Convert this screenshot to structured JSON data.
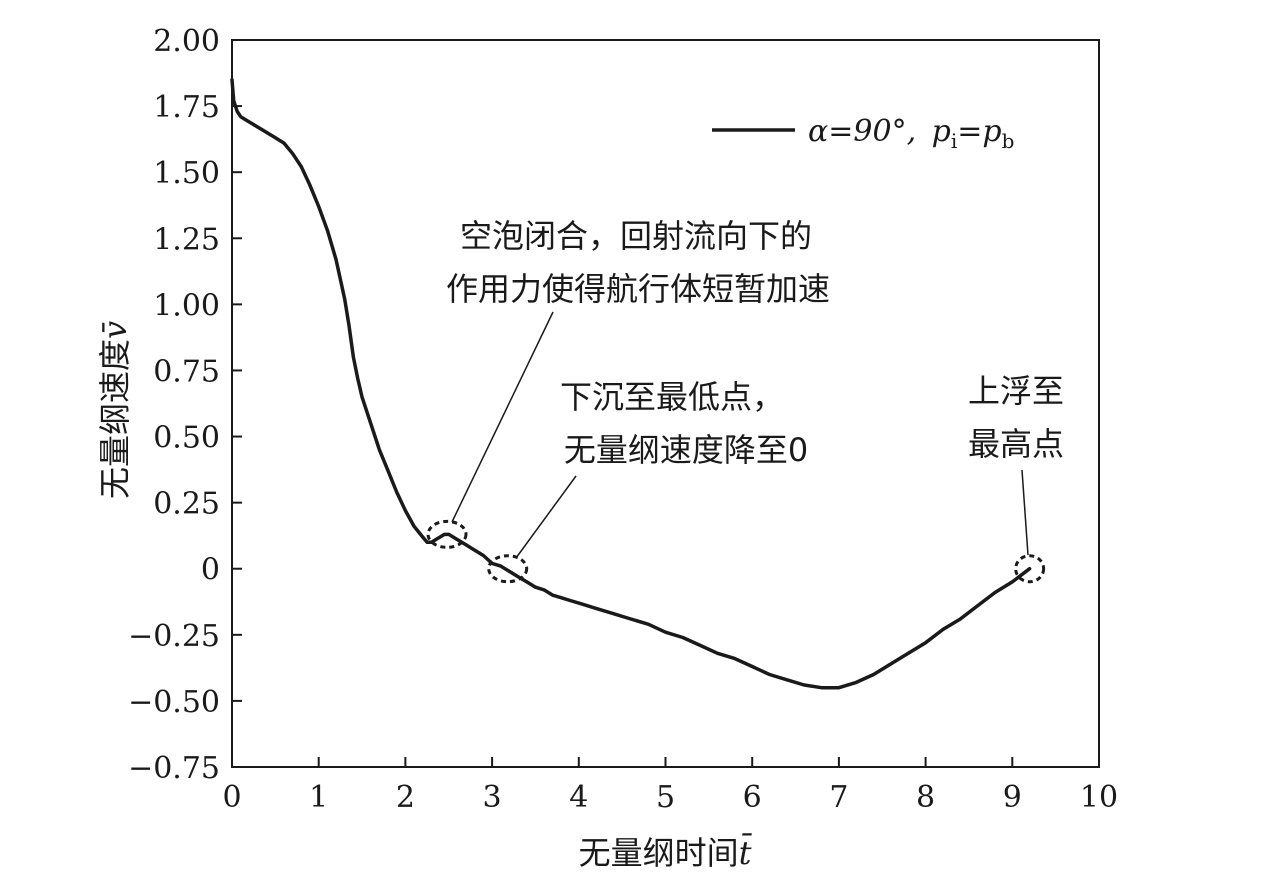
{
  "chart_data": {
    "type": "line",
    "xlabel": "无量纲时间",
    "xlabel_var": "t̄",
    "ylabel": "无量纲速度",
    "ylabel_var": "v̄",
    "xlim": [
      0,
      10
    ],
    "ylim": [
      -0.75,
      2.0
    ],
    "x_ticks": [
      0,
      1,
      2,
      3,
      4,
      5,
      6,
      7,
      8,
      9,
      10
    ],
    "x_tick_labels": [
      "0",
      "1",
      "2",
      "3",
      "4",
      "5",
      "6",
      "7",
      "8",
      "9",
      "10"
    ],
    "y_ticks": [
      2.0,
      1.75,
      1.5,
      1.25,
      1.0,
      0.75,
      0.5,
      0.25,
      0,
      -0.25,
      -0.5,
      -0.75
    ],
    "y_tick_labels": [
      "2.00",
      "1.75",
      "1.50",
      "1.25",
      "1.00",
      "0.75",
      "0.50",
      "0.25",
      "0",
      "−0.25",
      "−0.50",
      "−0.75"
    ],
    "legend": {
      "position": "top-right",
      "alpha_label": "α=90°,",
      "p_i": "p",
      "p_i_sub": "i",
      "eq": "=",
      "p_b": "p",
      "p_b_sub": "b"
    },
    "series": [
      {
        "x": [
          0.0,
          0.02,
          0.06,
          0.1,
          0.2,
          0.3,
          0.4,
          0.5,
          0.6,
          0.7,
          0.8,
          0.9,
          1.0,
          1.1,
          1.2,
          1.3,
          1.35,
          1.4,
          1.45,
          1.5,
          1.6,
          1.7,
          1.8,
          1.9,
          2.0,
          2.1,
          2.2,
          2.25,
          2.3,
          2.35,
          2.4,
          2.45,
          2.5,
          2.55,
          2.6,
          2.7,
          2.8,
          2.9,
          3.0,
          3.1,
          3.2,
          3.3,
          3.4,
          3.5,
          3.6,
          3.7,
          3.8,
          3.9,
          4.0,
          4.2,
          4.4,
          4.6,
          4.8,
          5.0,
          5.2,
          5.4,
          5.6,
          5.8,
          6.0,
          6.2,
          6.4,
          6.6,
          6.8,
          6.9,
          7.0,
          7.2,
          7.4,
          7.6,
          7.8,
          8.0,
          8.2,
          8.4,
          8.6,
          8.8,
          9.0,
          9.2
        ],
        "y": [
          1.85,
          1.77,
          1.73,
          1.71,
          1.69,
          1.67,
          1.65,
          1.63,
          1.61,
          1.57,
          1.52,
          1.45,
          1.37,
          1.28,
          1.17,
          1.02,
          0.92,
          0.8,
          0.72,
          0.65,
          0.55,
          0.45,
          0.37,
          0.29,
          0.22,
          0.16,
          0.12,
          0.1,
          0.1,
          0.11,
          0.12,
          0.13,
          0.13,
          0.12,
          0.11,
          0.09,
          0.07,
          0.05,
          0.02,
          0.01,
          -0.01,
          -0.03,
          -0.05,
          -0.07,
          -0.08,
          -0.1,
          -0.11,
          -0.12,
          -0.13,
          -0.15,
          -0.17,
          -0.19,
          -0.21,
          -0.24,
          -0.26,
          -0.29,
          -0.32,
          -0.34,
          -0.37,
          -0.4,
          -0.42,
          -0.44,
          -0.45,
          -0.45,
          -0.45,
          -0.43,
          -0.4,
          -0.36,
          -0.32,
          -0.28,
          -0.23,
          -0.19,
          -0.14,
          -0.09,
          -0.05,
          0.0
        ]
      }
    ],
    "annotations": [
      {
        "lines": [
          "空泡闭合，回射流向下的",
          "作用力使得航行体短暂加速"
        ],
        "target": [
          2.48,
          0.13
        ]
      },
      {
        "lines": [
          "下沉至最低点，",
          "无量纲速度降至0"
        ],
        "target": [
          3.18,
          0.0
        ]
      },
      {
        "lines": [
          "上浮至",
          "最高点"
        ],
        "target": [
          9.2,
          0.0
        ]
      }
    ]
  }
}
